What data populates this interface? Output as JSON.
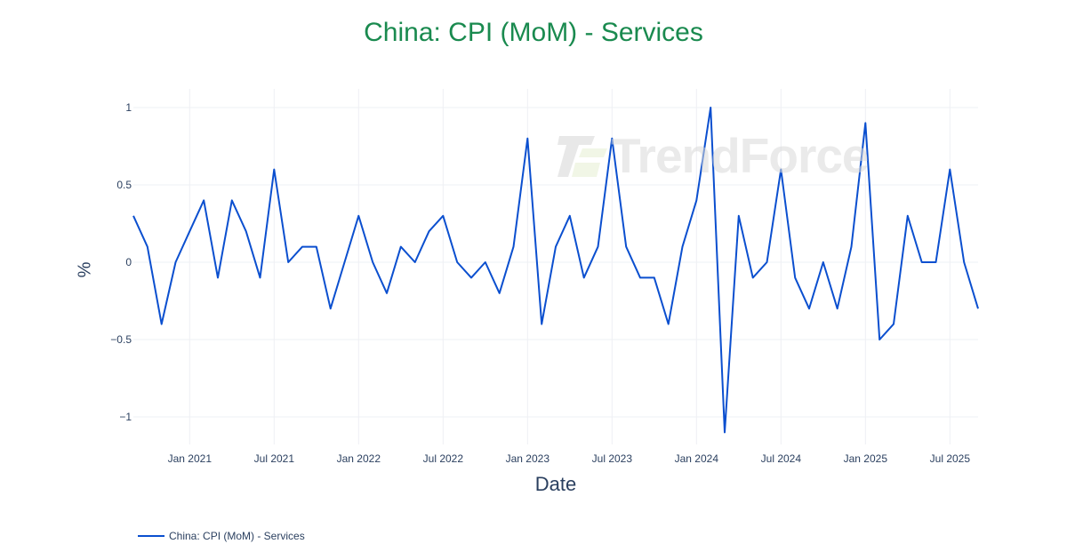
{
  "title": "China: CPI (MoM) - Services",
  "watermark": "TrendForce",
  "legend": [
    {
      "label": "China: CPI (MoM) - Services",
      "color": "#0b4fcf"
    }
  ],
  "colors": {
    "title": "#1a8a4f",
    "line": "#0b4fcf",
    "axis_text": "#2a3f5f",
    "grid": "#eef0f4"
  },
  "chart_data": {
    "type": "line",
    "title": "China: CPI (MoM) - Services",
    "xlabel": "Date",
    "ylabel": "%",
    "ylim": [
      -1.15,
      1.1
    ],
    "yticks": [
      1,
      0.5,
      0,
      -0.5,
      -1
    ],
    "ytick_labels": [
      "1",
      "0.5",
      "0",
      "−0.5",
      "−1"
    ],
    "xtick_labels": [
      "Jan 2021",
      "Jul 2021",
      "Jan 2022",
      "Jul 2022",
      "Jan 2023",
      "Jul 2023",
      "Jan 2024",
      "Jul 2024",
      "Jan 2025",
      "Jul 2025"
    ],
    "grid": true,
    "legend_position": "bottom-left",
    "x": [
      "2020-09",
      "2020-10",
      "2020-11",
      "2020-12",
      "2021-01",
      "2021-02",
      "2021-03",
      "2021-04",
      "2021-05",
      "2021-06",
      "2021-07",
      "2021-08",
      "2021-09",
      "2021-10",
      "2021-11",
      "2021-12",
      "2022-01",
      "2022-02",
      "2022-03",
      "2022-04",
      "2022-05",
      "2022-06",
      "2022-07",
      "2022-08",
      "2022-09",
      "2022-10",
      "2022-11",
      "2022-12",
      "2023-01",
      "2023-02",
      "2023-03",
      "2023-04",
      "2023-05",
      "2023-06",
      "2023-07",
      "2023-08",
      "2023-09",
      "2023-10",
      "2023-11",
      "2023-12",
      "2024-01",
      "2024-02",
      "2024-03",
      "2024-04",
      "2024-05",
      "2024-06",
      "2024-07",
      "2024-08",
      "2024-09",
      "2024-10",
      "2024-11",
      "2024-12",
      "2025-01",
      "2025-02",
      "2025-03",
      "2025-04",
      "2025-05",
      "2025-06",
      "2025-07",
      "2025-08",
      "2025-09"
    ],
    "series": [
      {
        "name": "China: CPI (MoM) - Services",
        "values": [
          0.3,
          0.1,
          -0.4,
          0.0,
          0.2,
          0.4,
          -0.1,
          0.4,
          0.2,
          -0.1,
          0.6,
          0.0,
          0.1,
          0.1,
          -0.3,
          0.0,
          0.3,
          0.0,
          -0.2,
          0.1,
          0.0,
          0.2,
          0.3,
          0.0,
          -0.1,
          0.0,
          -0.2,
          0.1,
          0.8,
          -0.4,
          0.1,
          0.3,
          -0.1,
          0.1,
          0.8,
          0.1,
          -0.1,
          -0.1,
          -0.4,
          0.1,
          0.4,
          1.0,
          -1.1,
          0.3,
          -0.1,
          0.0,
          0.6,
          -0.1,
          -0.3,
          0.0,
          -0.3,
          0.1,
          0.9,
          -0.5,
          -0.4,
          0.3,
          0.0,
          0.0,
          0.6,
          0.0,
          -0.3
        ]
      }
    ]
  }
}
